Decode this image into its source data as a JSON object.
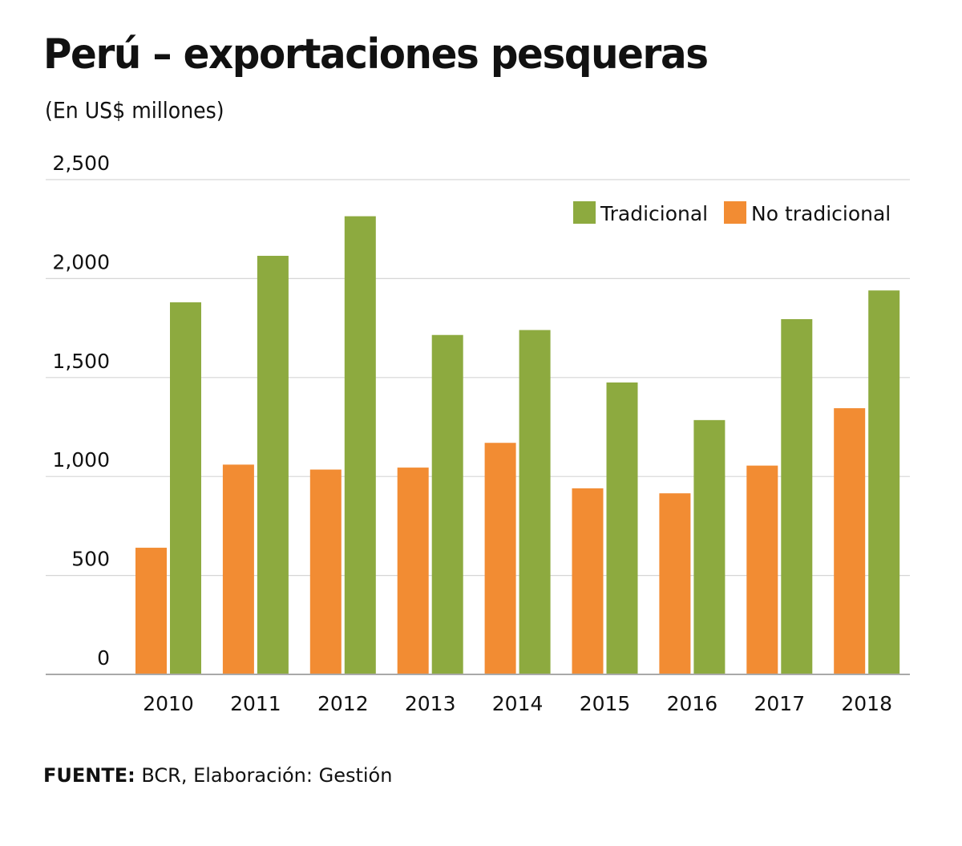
{
  "header": {
    "title": "Perú – exportaciones pesqueras",
    "subtitle": "(En  US$ millones)"
  },
  "footer": {
    "source_label": "FUENTE:",
    "source_text": " BCR, Elaboración: Gestión"
  },
  "chart_data": {
    "type": "bar",
    "title": "Perú – exportaciones pesqueras",
    "subtitle": "(En US$ millones)",
    "xlabel": "",
    "ylabel": "",
    "categories": [
      "2010",
      "2011",
      "2012",
      "2013",
      "2014",
      "2015",
      "2016",
      "2017",
      "2018"
    ],
    "series": [
      {
        "name": "No tradicional",
        "color": "#F28C33",
        "values": [
          640,
          1060,
          1035,
          1045,
          1170,
          940,
          915,
          1055,
          1345
        ]
      },
      {
        "name": "Tradicional",
        "color": "#8DAA3F",
        "values": [
          1880,
          2115,
          2315,
          1715,
          1740,
          1475,
          1285,
          1795,
          1940
        ]
      }
    ],
    "legend": {
      "placement": "top-right",
      "entries": [
        {
          "label": "Tradicional",
          "color": "#8DAA3F"
        },
        {
          "label": "No tradicional",
          "color": "#F28C33"
        }
      ]
    },
    "yticks": [
      0,
      500,
      1000,
      1500,
      2000,
      2500
    ],
    "ytick_labels": [
      "0",
      "500",
      "1,000",
      "1,500",
      "2,000",
      "2,500"
    ],
    "ylim": [
      0,
      2500
    ],
    "grid": true,
    "source": "FUENTE: BCR, Elaboración: Gestión"
  }
}
